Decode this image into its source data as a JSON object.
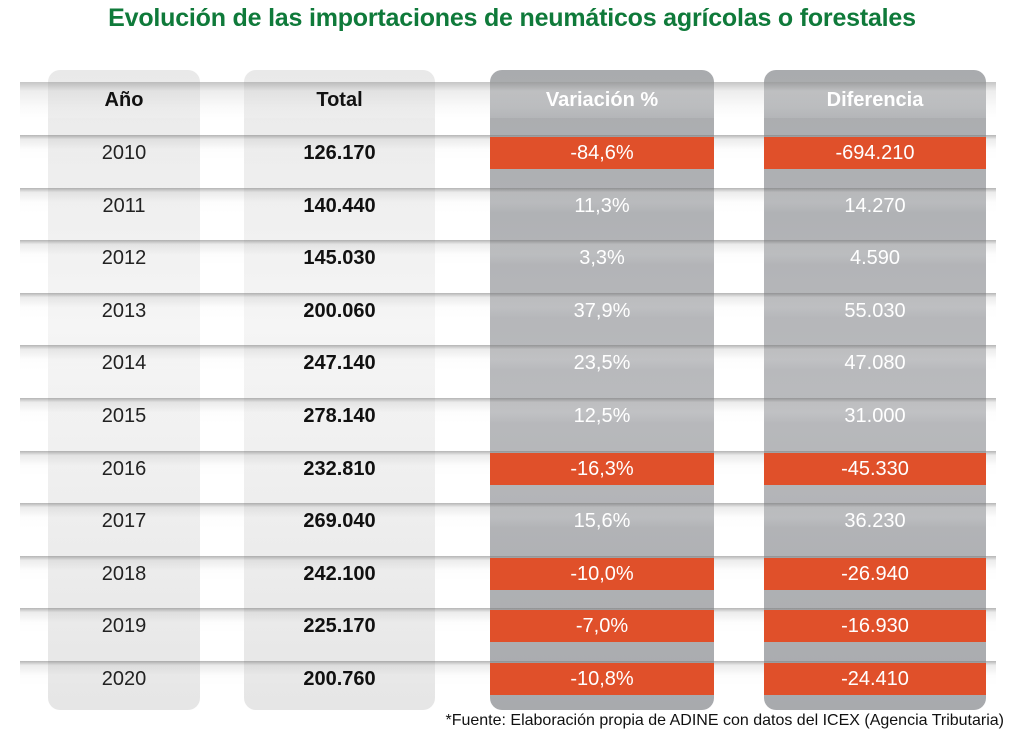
{
  "title": "Evolución de las importaciones de neumáticos agrícolas o forestales",
  "source": "*Fuente: Elaboración propia de ADINE con datos del ICEX (Agencia Tributaria)",
  "colors": {
    "title": "#0f7a3a",
    "negative": "#e0502a",
    "dark_column": "#adafb2"
  },
  "chart_data": {
    "type": "table",
    "columns": [
      "Año",
      "Total",
      "Variación %",
      "Diferencia"
    ],
    "rows": [
      [
        "2010",
        "126.170",
        "-84,6%",
        "-694.210"
      ],
      [
        "2011",
        "140.440",
        "11,3%",
        "14.270"
      ],
      [
        "2012",
        "145.030",
        "3,3%",
        "4.590"
      ],
      [
        "2013",
        "200.060",
        "37,9%",
        "55.030"
      ],
      [
        "2014",
        "247.140",
        "23,5%",
        "47.080"
      ],
      [
        "2015",
        "278.140",
        "12,5%",
        "31.000"
      ],
      [
        "2016",
        "232.810",
        "-16,3%",
        "-45.330"
      ],
      [
        "2017",
        "269.040",
        "15,6%",
        "36.230"
      ],
      [
        "2018",
        "242.100",
        "-10,0%",
        "-26.940"
      ],
      [
        "2019",
        "225.170",
        "-7,0%",
        "-16.930"
      ],
      [
        "2020",
        "200.760",
        "-10,8%",
        "-24.410"
      ]
    ],
    "highlighted_negative_rows": [
      "2010",
      "2016",
      "2018",
      "2019",
      "2020"
    ]
  }
}
